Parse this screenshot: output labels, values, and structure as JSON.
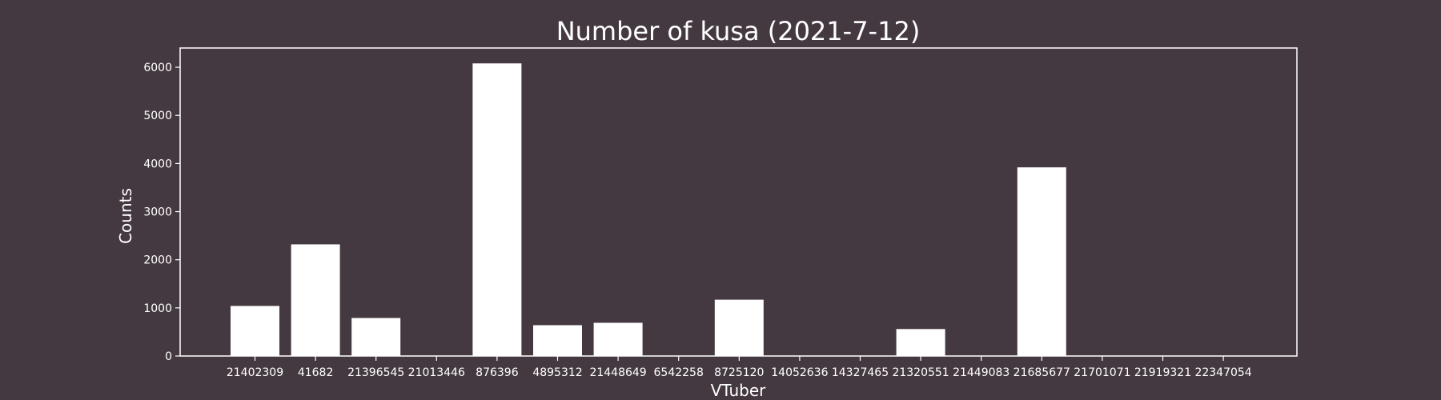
{
  "colors": {
    "background": "#453941",
    "bar": "#ffffff",
    "axes": "#ffffff",
    "text": "#ffffff"
  },
  "chart_data": {
    "type": "bar",
    "title": "Number of kusa (2021-7-12)",
    "xlabel": "VTuber",
    "ylabel": "Counts",
    "ylim": [
      0,
      6400
    ],
    "yticks": [
      0,
      1000,
      2000,
      3000,
      4000,
      5000,
      6000
    ],
    "grid": false,
    "categories": [
      "21402309",
      "41682",
      "21396545",
      "21013446",
      "876396",
      "4895312",
      "21448649",
      "6542258",
      "8725120",
      "14052636",
      "14327465",
      "21320551",
      "21449083",
      "21685677",
      "21701071",
      "21919321",
      "22347054"
    ],
    "values": [
      1040,
      2320,
      790,
      0,
      6080,
      640,
      690,
      0,
      1170,
      0,
      0,
      560,
      0,
      3920,
      0,
      0,
      0
    ]
  }
}
